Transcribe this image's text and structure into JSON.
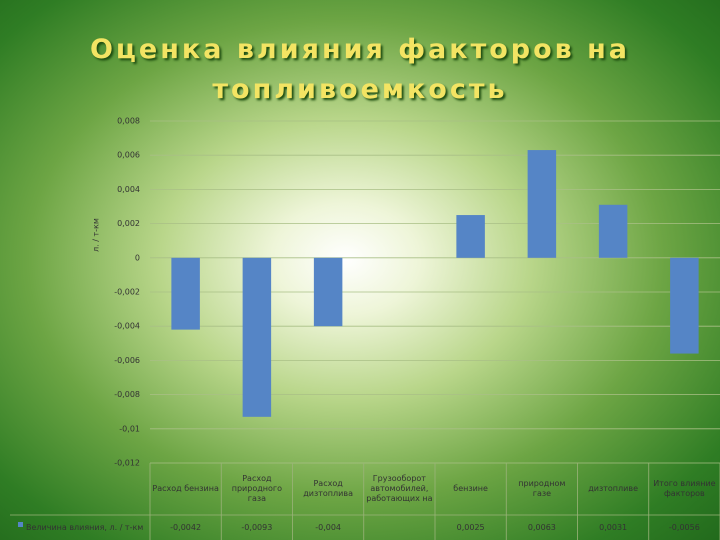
{
  "chart_data": {
    "type": "bar",
    "title": "Оценка влияния факторов на топливоемкость",
    "y_label": "л. / т-км",
    "categories": [
      "Расход бензина",
      "Расход природного газа",
      "Расход дизтоплива",
      "Грузооборот автомобилей, работающих на",
      "бензине",
      "природном газе",
      "дизтопливе",
      "Итого влияние факторов"
    ],
    "series": [
      {
        "name": "Величина влияния, л. / т-км",
        "color": "#5585c6",
        "values": [
          -0.0042,
          -0.0093,
          -0.004,
          null,
          0.0025,
          0.0063,
          0.0031,
          -0.0056
        ],
        "value_labels": [
          "-0,0042",
          "-0,0093",
          "-0,004",
          null,
          "0,0025",
          "0,0063",
          "0,0031",
          "-0,0056"
        ]
      }
    ],
    "ylim": [
      -0.012,
      0.008
    ],
    "yticks": [
      {
        "value": -0.012,
        "label": "-0,012"
      },
      {
        "value": -0.01,
        "label": "-0,01"
      },
      {
        "value": -0.008,
        "label": "-0,008"
      },
      {
        "value": -0.006,
        "label": "-0,006"
      },
      {
        "value": -0.004,
        "label": "-0,004"
      },
      {
        "value": -0.002,
        "label": "-0,002"
      },
      0,
      {
        "value": 0.002,
        "label": "0,002"
      },
      {
        "value": 0.004,
        "label": "0,004"
      },
      {
        "value": 0.006,
        "label": "0,006"
      },
      {
        "value": 0.008,
        "label": "0,008"
      }
    ],
    "grid": true
  }
}
